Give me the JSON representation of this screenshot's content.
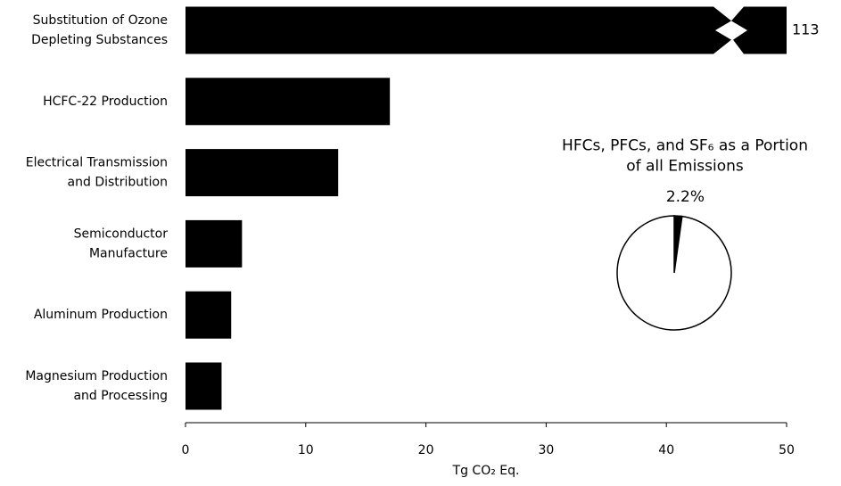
{
  "chart_data": [
    {
      "type": "hbar",
      "categories": [
        "Substitution of Ozone\nDepleting Substances",
        "HCFC-22 Production",
        "Electrical Transmission\nand Distribution",
        "Semiconductor\nManufacture",
        "Aluminum Production",
        "Magnesium Production\nand Processing"
      ],
      "values": [
        113,
        17,
        12.7,
        4.7,
        3.8,
        3.0
      ],
      "value_labels": [
        "113",
        null,
        null,
        null,
        null,
        null
      ],
      "color": "#000000",
      "xlim": [
        0,
        50
      ],
      "xticks": [
        0,
        10,
        20,
        30,
        40,
        50
      ],
      "x_label": "Tg CO₂ Eq."
    },
    {
      "type": "pie",
      "title": "HFCs, PFCs, and SF₆ as a Portion\nof all Emissions",
      "values": [
        2.2,
        97.8
      ],
      "value_labels": [
        "2.2%",
        null
      ],
      "colors": [
        "#000000",
        "#ffffff"
      ]
    }
  ]
}
